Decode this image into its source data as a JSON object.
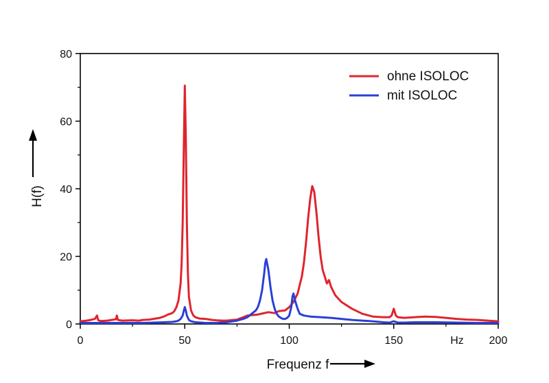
{
  "chart_data": {
    "type": "line",
    "title": "",
    "xlabel": "Frequenz f",
    "ylabel": "H(f)",
    "x_unit": "Hz",
    "xlim": [
      0,
      200
    ],
    "ylim": [
      0,
      80
    ],
    "x_ticks": [
      0,
      50,
      100,
      150,
      200
    ],
    "x_tick_labels": [
      "0",
      "50",
      "100",
      "150",
      "200"
    ],
    "y_ticks": [
      0,
      20,
      40,
      60,
      80
    ],
    "y_tick_labels": [
      "0",
      "20",
      "40",
      "60",
      "80"
    ],
    "grid": false,
    "legend_position": "top-right",
    "series": [
      {
        "name": "ohne ISOLOC",
        "color": "#e0242b",
        "x": [
          0,
          3,
          5,
          7,
          8,
          8.5,
          9,
          10,
          13,
          15,
          17,
          17.5,
          18,
          20,
          25,
          28,
          30,
          33,
          35,
          38,
          40,
          42,
          44,
          45,
          46,
          47,
          48,
          48.5,
          49,
          49.5,
          50,
          50.5,
          51,
          51.5,
          52,
          53,
          54,
          55,
          57,
          60,
          63,
          65,
          68,
          70,
          75,
          78,
          80,
          85,
          90,
          93,
          95,
          98,
          100,
          102,
          104,
          105,
          106,
          107,
          108,
          109,
          110,
          111,
          112,
          113,
          114,
          115,
          116,
          117,
          118,
          119,
          120,
          122,
          125,
          130,
          135,
          140,
          145,
          148,
          149,
          150,
          151,
          152,
          155,
          160,
          165,
          170,
          175,
          180,
          185,
          190,
          195,
          200
        ],
        "y": [
          0.8,
          1,
          1.2,
          1.5,
          2.5,
          1.2,
          1,
          0.9,
          1,
          1.2,
          1.4,
          2.5,
          1.2,
          1,
          1.1,
          1,
          1.2,
          1.3,
          1.5,
          1.8,
          2.2,
          2.8,
          3.2,
          3.8,
          5,
          7,
          12,
          18,
          30,
          50,
          70.5,
          55,
          30,
          15,
          8,
          4,
          2.6,
          2,
          1.6,
          1.5,
          1.2,
          1.1,
          1,
          1,
          1.3,
          2,
          2.5,
          2.8,
          3.5,
          3.2,
          3.8,
          4,
          5,
          6.5,
          9,
          11.5,
          14,
          18,
          24,
          31,
          37,
          40.8,
          39,
          33,
          26,
          20,
          16,
          14,
          12,
          13,
          11,
          8.5,
          6.5,
          4.5,
          3,
          2.2,
          2,
          2,
          2.5,
          4.5,
          2.5,
          2,
          1.8,
          2,
          2.2,
          2.1,
          1.8,
          1.5,
          1.3,
          1.2,
          1,
          0.8
        ]
      },
      {
        "name": "mit ISOLOC",
        "color": "#2a3fd6",
        "x": [
          0,
          5,
          10,
          20,
          30,
          40,
          44,
          46,
          47,
          48,
          49,
          49.5,
          50,
          50.5,
          51,
          52,
          53,
          55,
          60,
          65,
          70,
          75,
          78,
          80,
          82,
          84,
          85,
          86,
          87,
          88,
          88.5,
          89,
          90,
          91,
          92,
          93,
          94,
          95,
          96,
          97,
          98,
          99,
          100,
          101,
          101.5,
          102,
          103,
          104,
          105,
          107,
          110,
          115,
          120,
          125,
          130,
          140,
          145,
          148,
          150,
          152,
          155,
          160,
          170,
          180,
          190,
          200
        ],
        "y": [
          0.3,
          0.3,
          0.3,
          0.3,
          0.3,
          0.5,
          0.6,
          0.8,
          1,
          1.5,
          2.5,
          3.8,
          5,
          4,
          2.5,
          1.2,
          0.8,
          0.5,
          0.3,
          0.3,
          0.5,
          1,
          1.5,
          2,
          3,
          4,
          5,
          7,
          10,
          15,
          18,
          19.2,
          16,
          11,
          7,
          4.5,
          3,
          2.2,
          1.8,
          1.5,
          1.5,
          1.8,
          2.5,
          5,
          8,
          9,
          6.5,
          4.5,
          3,
          2.5,
          2.2,
          2,
          1.8,
          1.5,
          1.2,
          0.8,
          0.5,
          0.4,
          0.8,
          0.4,
          0.4,
          0.5,
          0.5,
          0.4,
          0.3,
          0.3
        ]
      }
    ]
  }
}
